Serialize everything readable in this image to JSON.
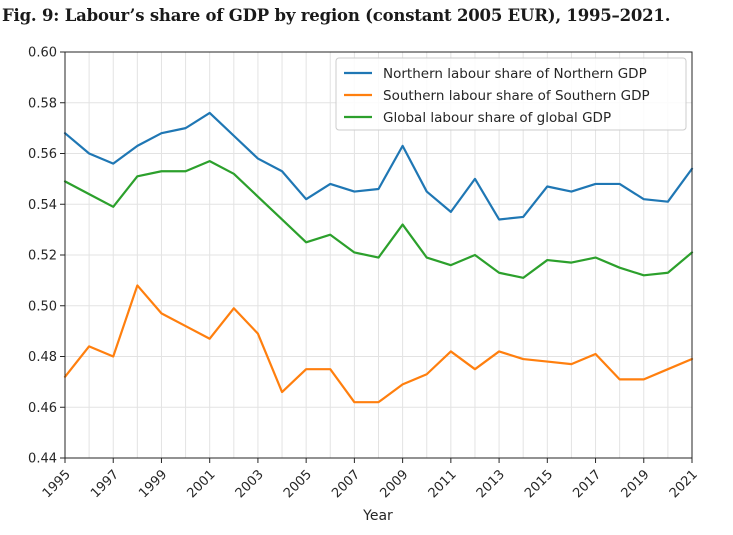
{
  "figure": {
    "title": "Fig. 9: Labour’s share of GDP by region (constant 2005 EUR), 1995–2021."
  },
  "chart_data": {
    "type": "line",
    "title": "Fig. 9: Labour’s share of GDP by region (constant 2005 EUR), 1995–2021.",
    "xlabel": "Year",
    "ylabel": "",
    "x": [
      1995,
      1996,
      1997,
      1998,
      1999,
      2000,
      2001,
      2002,
      2003,
      2004,
      2005,
      2006,
      2007,
      2008,
      2009,
      2010,
      2011,
      2012,
      2013,
      2014,
      2015,
      2016,
      2017,
      2018,
      2019,
      2020,
      2021
    ],
    "xlim": [
      1995,
      2021
    ],
    "ylim": [
      0.44,
      0.6
    ],
    "x_ticks": [
      "1995",
      "1997",
      "1999",
      "2001",
      "2003",
      "2005",
      "2007",
      "2009",
      "2011",
      "2013",
      "2015",
      "2017",
      "2019",
      "2021"
    ],
    "y_ticks": [
      "0.44",
      "0.46",
      "0.48",
      "0.50",
      "0.52",
      "0.54",
      "0.56",
      "0.58",
      "0.60"
    ],
    "grid": true,
    "legend_position": "top-right",
    "series": [
      {
        "name": "Northern labour share of Northern GDP",
        "color": "#1f77b4",
        "values": [
          0.568,
          0.56,
          0.556,
          0.563,
          0.568,
          0.57,
          0.576,
          0.567,
          0.558,
          0.553,
          0.542,
          0.548,
          0.545,
          0.546,
          0.563,
          0.545,
          0.537,
          0.55,
          0.534,
          0.535,
          0.547,
          0.545,
          0.548,
          0.548,
          0.542,
          0.541,
          0.554
        ]
      },
      {
        "name": "Southern labour share of Southern GDP",
        "color": "#ff7f0e",
        "values": [
          0.472,
          0.484,
          0.48,
          0.508,
          0.497,
          0.492,
          0.487,
          0.499,
          0.489,
          0.466,
          0.475,
          0.475,
          0.462,
          0.462,
          0.469,
          0.473,
          0.482,
          0.475,
          0.482,
          0.479,
          0.478,
          0.477,
          0.481,
          0.471,
          0.471,
          0.475,
          0.479
        ]
      },
      {
        "name": "Global labour share of global GDP",
        "color": "#2ca02c",
        "values": [
          0.549,
          0.544,
          0.539,
          0.551,
          0.553,
          0.553,
          0.557,
          0.552,
          0.543,
          0.534,
          0.525,
          0.528,
          0.521,
          0.519,
          0.532,
          0.519,
          0.516,
          0.52,
          0.513,
          0.511,
          0.518,
          0.517,
          0.519,
          0.515,
          0.512,
          0.513,
          0.521
        ]
      }
    ]
  }
}
